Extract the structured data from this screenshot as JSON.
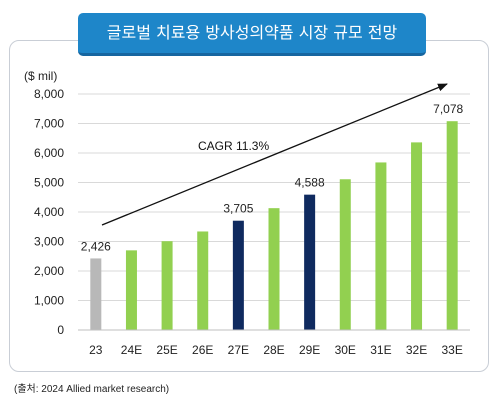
{
  "header": {
    "title": "글로벌 치료용 방사성의약품 시장 규모 전망"
  },
  "footer": {
    "source": "(출처: 2024 Allied market research)"
  },
  "chart_data": {
    "type": "bar",
    "title": "글로벌 치료용 방사성의약품 시장 규모 전망",
    "ylabel": "($ mil)",
    "xlabel": "",
    "ylim": [
      0,
      8000
    ],
    "yticks": [
      0,
      1000,
      2000,
      3000,
      4000,
      5000,
      6000,
      7000,
      8000
    ],
    "ytick_labels": [
      "0",
      "1,000",
      "2,000",
      "3,000",
      "4,000",
      "5,000",
      "6,000",
      "7,000",
      "8,000"
    ],
    "categories": [
      "23",
      "24E",
      "25E",
      "26E",
      "27E",
      "28E",
      "29E",
      "30E",
      "31E",
      "32E",
      "33E"
    ],
    "values": [
      2426,
      2700,
      3010,
      3340,
      3705,
      4130,
      4588,
      5110,
      5680,
      6360,
      7078
    ],
    "data_labels": {
      "0": "2,426",
      "4": "3,705",
      "6": "4,588",
      "10": "7,078"
    },
    "bar_colors": [
      "#b8b8b8",
      "#92d050",
      "#92d050",
      "#92d050",
      "#0f2a5f",
      "#92d050",
      "#0f2a5f",
      "#92d050",
      "#92d050",
      "#92d050",
      "#92d050"
    ],
    "grid": true,
    "grid_color": "#d9d9d9",
    "legend": "none",
    "annotation": {
      "text": "CAGR 11.3%",
      "type": "trend-arrow"
    }
  }
}
